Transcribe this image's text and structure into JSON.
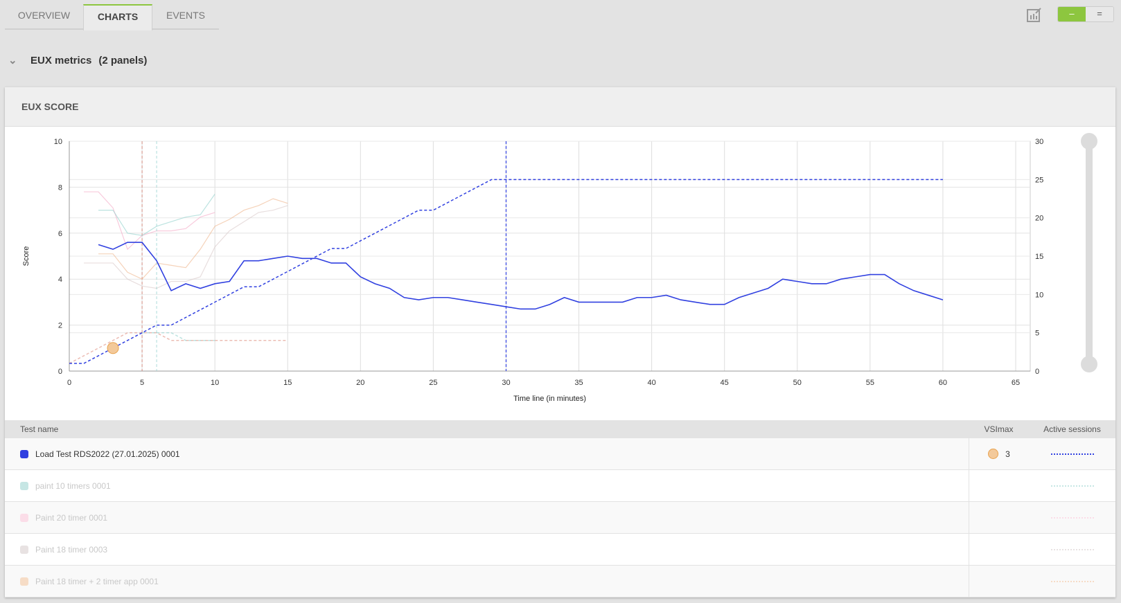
{
  "tabs": [
    {
      "label": "OVERVIEW"
    },
    {
      "label": "CHARTS",
      "active": true
    },
    {
      "label": "EVENTS"
    }
  ],
  "toolbar": {
    "edit_chart_icon": "chart-edit-icon",
    "collapse_label": "–",
    "expand_label": "=",
    "accent": "#8dc63f"
  },
  "section": {
    "title": "EUX metrics",
    "count": "(2 panels)"
  },
  "panel": {
    "title": "EUX SCORE"
  },
  "table": {
    "headers": {
      "name": "Test name",
      "vsimax": "VSImax",
      "sessions": "Active sessions"
    },
    "rows": [
      {
        "name": "Load Test RDS2022 (27.01.2025) 0001",
        "color": "#3040e0",
        "vsimax": "3",
        "active": true
      },
      {
        "name": "paint 10 timers 0001",
        "color": "#c6e6e4",
        "vsimax": "",
        "active": false
      },
      {
        "name": "Paint 20 timer 0001",
        "color": "#fbdde8",
        "vsimax": "",
        "active": false
      },
      {
        "name": "Paint 18 timer 0003",
        "color": "#e8e2e2",
        "vsimax": "",
        "active": false
      },
      {
        "name": "Paint 18 timer + 2 timer app 0001",
        "color": "#f6dcc6",
        "vsimax": "",
        "active": false
      }
    ]
  },
  "chart_data": {
    "type": "line",
    "xlabel": "Time line (in minutes)",
    "ylabel": "Score",
    "y2label": "Active Sessions",
    "xlim": [
      0,
      66
    ],
    "ylim": [
      0,
      10
    ],
    "y2lim": [
      0,
      30
    ],
    "xticks": [
      0,
      5,
      10,
      15,
      20,
      25,
      30,
      35,
      40,
      45,
      50,
      55,
      60,
      65
    ],
    "yticks": [
      0,
      2,
      4,
      6,
      8,
      10
    ],
    "y2ticks": [
      0,
      5,
      10,
      15,
      20,
      25,
      30
    ],
    "grid": true,
    "series": [
      {
        "name": "Load Test RDS2022 (27.01.2025) 0001",
        "color": "#3040e0",
        "opacity": 1,
        "score": [
          [
            2,
            5.5
          ],
          [
            3,
            5.3
          ],
          [
            4,
            5.6
          ],
          [
            5,
            5.6
          ],
          [
            6,
            4.8
          ],
          [
            7,
            3.5
          ],
          [
            8,
            3.8
          ],
          [
            9,
            3.6
          ],
          [
            10,
            3.8
          ],
          [
            11,
            3.9
          ],
          [
            12,
            4.8
          ],
          [
            13,
            4.8
          ],
          [
            14,
            4.9
          ],
          [
            15,
            5.0
          ],
          [
            16,
            4.9
          ],
          [
            17,
            4.9
          ],
          [
            18,
            4.7
          ],
          [
            19,
            4.7
          ],
          [
            20,
            4.1
          ],
          [
            21,
            3.8
          ],
          [
            22,
            3.6
          ],
          [
            23,
            3.2
          ],
          [
            24,
            3.1
          ],
          [
            25,
            3.2
          ],
          [
            26,
            3.2
          ],
          [
            27,
            3.1
          ],
          [
            28,
            3.0
          ],
          [
            29,
            2.9
          ],
          [
            30,
            2.8
          ],
          [
            31,
            2.7
          ],
          [
            32,
            2.7
          ],
          [
            33,
            2.9
          ],
          [
            34,
            3.2
          ],
          [
            35,
            3.0
          ],
          [
            36,
            3.0
          ],
          [
            37,
            3.0
          ],
          [
            38,
            3.0
          ],
          [
            39,
            3.2
          ],
          [
            40,
            3.2
          ],
          [
            41,
            3.3
          ],
          [
            42,
            3.1
          ],
          [
            43,
            3.0
          ],
          [
            44,
            2.9
          ],
          [
            45,
            2.9
          ],
          [
            46,
            3.2
          ],
          [
            47,
            3.4
          ],
          [
            48,
            3.6
          ],
          [
            49,
            4.0
          ],
          [
            50,
            3.9
          ],
          [
            51,
            3.8
          ],
          [
            52,
            3.8
          ],
          [
            53,
            4.0
          ],
          [
            54,
            4.1
          ],
          [
            55,
            4.2
          ],
          [
            56,
            4.2
          ],
          [
            57,
            3.8
          ],
          [
            58,
            3.5
          ],
          [
            59,
            3.3
          ],
          [
            60,
            3.1
          ]
        ],
        "sessions": [
          [
            0,
            1
          ],
          [
            1,
            1
          ],
          [
            5,
            5
          ],
          [
            6,
            6
          ],
          [
            7,
            6
          ],
          [
            12,
            11
          ],
          [
            13,
            11
          ],
          [
            18,
            16
          ],
          [
            19,
            16
          ],
          [
            24,
            21
          ],
          [
            25,
            21
          ],
          [
            29,
            25
          ],
          [
            60,
            25
          ]
        ],
        "vline": 30,
        "vsimax": {
          "x": 3,
          "score": 1.0
        }
      },
      {
        "name": "paint 10 timers 0001",
        "color": "#8fd0cc",
        "opacity": 0.6,
        "score": [
          [
            2,
            7.0
          ],
          [
            3,
            7.0
          ],
          [
            4,
            6.0
          ],
          [
            5,
            5.9
          ],
          [
            6,
            6.3
          ],
          [
            7,
            6.5
          ],
          [
            8,
            6.7
          ],
          [
            9,
            6.8
          ],
          [
            10,
            7.7
          ]
        ],
        "sessions": [
          [
            5,
            5
          ],
          [
            7,
            5
          ],
          [
            8,
            4
          ],
          [
            10,
            4
          ]
        ],
        "vline": 6
      },
      {
        "name": "Paint 20 timer 0001",
        "color": "#f4a6c4",
        "opacity": 0.6,
        "score": [
          [
            1,
            7.8
          ],
          [
            2,
            7.8
          ],
          [
            3,
            7.1
          ],
          [
            4,
            5.3
          ],
          [
            5,
            5.9
          ],
          [
            6,
            6.1
          ],
          [
            7,
            6.1
          ],
          [
            8,
            6.2
          ],
          [
            9,
            6.7
          ],
          [
            10,
            6.9
          ]
        ],
        "sessions": []
      },
      {
        "name": "Paint 18 timer 0003",
        "color": "#d8c8c8",
        "opacity": 0.6,
        "score": [
          [
            1,
            4.7
          ],
          [
            2,
            4.7
          ],
          [
            3,
            4.7
          ],
          [
            4,
            4.0
          ],
          [
            5,
            3.7
          ],
          [
            6,
            3.6
          ],
          [
            7,
            3.9
          ],
          [
            8,
            3.9
          ],
          [
            9,
            4.1
          ],
          [
            10,
            5.4
          ],
          [
            11,
            6.1
          ],
          [
            12,
            6.5
          ],
          [
            13,
            6.9
          ],
          [
            14,
            7.0
          ],
          [
            15,
            7.2
          ]
        ],
        "sessions": []
      },
      {
        "name": "Paint 18 timer + 2 timer app 0001",
        "color": "#eeb48a",
        "opacity": 0.6,
        "score": [
          [
            2,
            5.1
          ],
          [
            3,
            5.1
          ],
          [
            4,
            4.3
          ],
          [
            5,
            4.0
          ],
          [
            6,
            4.7
          ],
          [
            7,
            4.6
          ],
          [
            8,
            4.5
          ],
          [
            9,
            5.3
          ],
          [
            10,
            6.3
          ],
          [
            11,
            6.6
          ],
          [
            12,
            7.0
          ],
          [
            13,
            7.2
          ],
          [
            14,
            7.5
          ],
          [
            15,
            7.3
          ]
        ],
        "sessions": [
          [
            0,
            1
          ],
          [
            4,
            5
          ],
          [
            6,
            5
          ],
          [
            7,
            4
          ],
          [
            15,
            4
          ]
        ],
        "sessions_color": "#e09080",
        "vline": 5,
        "vline_color": "#d07060"
      }
    ]
  }
}
